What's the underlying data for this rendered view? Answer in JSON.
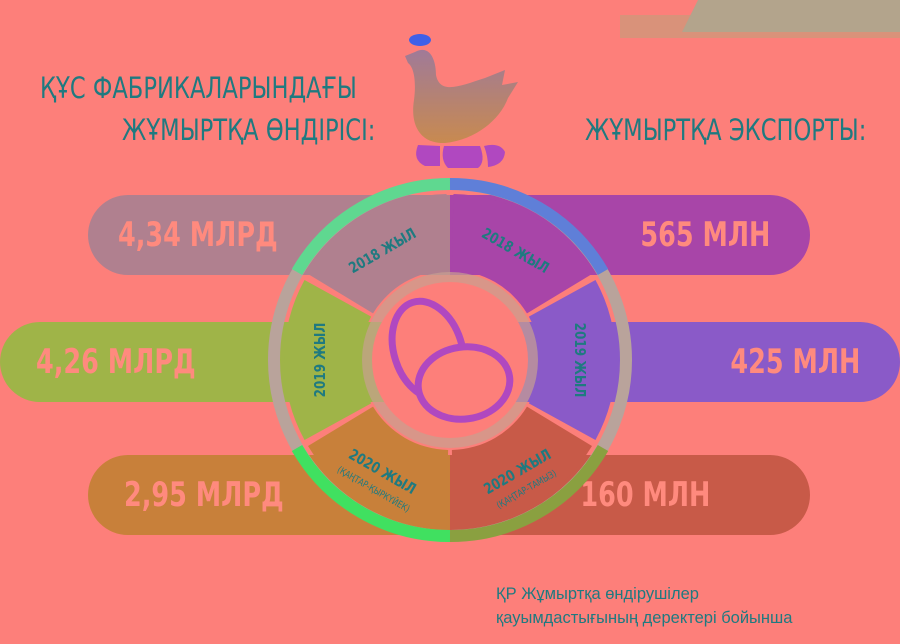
{
  "left_title": [
    "ҚҰС ФАБРИКАЛАРЫНДАҒЫ",
    "ЖҰМЫРТҚА ӨНДІРІСІ:"
  ],
  "right_title": "ЖҰМЫРТҚА ЭКСПОРТЫ:",
  "production": [
    {
      "year": "2018 ЖЫЛ",
      "value": "4,34 МЛРД",
      "color": "#b0808f"
    },
    {
      "year": "2019 ЖЫЛ",
      "value": "4,26 МЛРД",
      "color": "#9fb448"
    },
    {
      "year": "2020 ЖЫЛ",
      "period": "(ҚАҢТАР-ҚЫРКҮЙЕК)",
      "value": "2,95 МЛРД",
      "color": "#c8803a"
    }
  ],
  "export": [
    {
      "year": "2018 ЖЫЛ",
      "value": "565 МЛН",
      "color": "#a845a8"
    },
    {
      "year": "2019 ЖЫЛ",
      "value": "425 МЛН",
      "color": "#8a5ac8"
    },
    {
      "year": "2020 ЖЫЛ",
      "period": "(ҚАҢТАР-ТАМЫЗ)",
      "value": "160 МЛН",
      "color": "#c85a48"
    }
  ],
  "source": [
    "ҚР Жұмыртқа өндірушілер",
    "қауымдастығының деректері бойынша"
  ],
  "icons": [
    "hen-icon",
    "eggs-icon"
  ],
  "colors": {
    "background": "#fd7f7a",
    "text": "#1f7a80",
    "accent": "#b048c0"
  }
}
